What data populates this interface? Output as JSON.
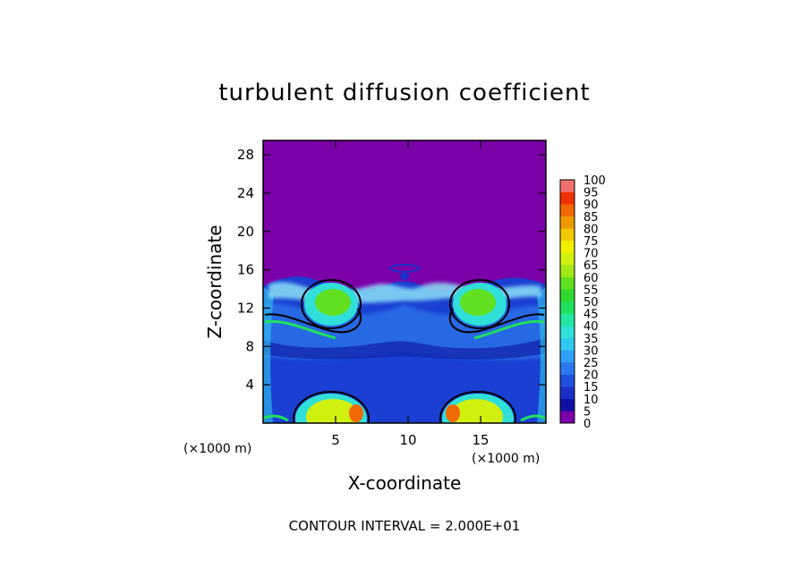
{
  "chart_data": {
    "type": "heatmap",
    "title": "turbulent diffusion coefficient",
    "xlabel": "X-coordinate",
    "ylabel": "Z-coordinate",
    "x_unit_left": "(×1000 m)",
    "x_unit_right": "(×1000 m)",
    "xlim": [
      0,
      19.5
    ],
    "ylim": [
      0,
      29.5
    ],
    "x_ticks": [
      5,
      10,
      15
    ],
    "y_ticks": [
      4,
      8,
      12,
      16,
      20,
      24,
      28
    ],
    "colorbar": {
      "levels": [
        "0",
        "5",
        "10",
        "15",
        "20",
        "25",
        "30",
        "35",
        "40",
        "45",
        "50",
        "55",
        "60",
        "65",
        "70",
        "75",
        "80",
        "85",
        "90",
        "95",
        "100"
      ],
      "colors": [
        "#7a00a8",
        "#1010a0",
        "#1a2fc8",
        "#2050e0",
        "#2a78f0",
        "#30a0f5",
        "#30c8f0",
        "#30e0d8",
        "#20e8a0",
        "#20e060",
        "#30d830",
        "#60e020",
        "#a0e818",
        "#d0f010",
        "#f0f000",
        "#f0c800",
        "#f09800",
        "#f06800",
        "#f03000",
        "#f07070"
      ]
    },
    "footer": "CONTOUR INTERVAL = 2.000E+01"
  }
}
